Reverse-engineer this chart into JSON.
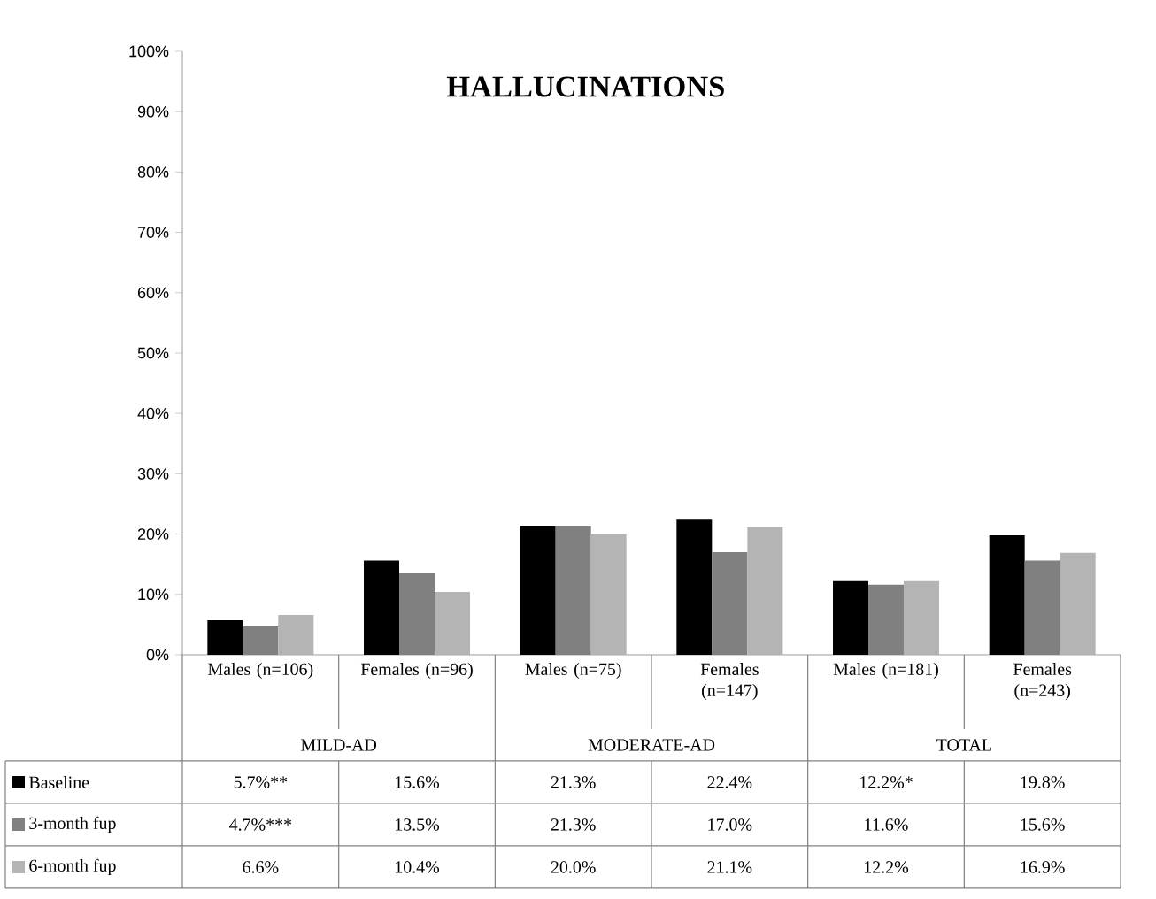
{
  "chart_data": {
    "type": "bar",
    "title": "HALLUCINATIONS",
    "categories": [
      "Males (n=106)",
      "Females (n=96)",
      "Males (n=75)",
      "Females (n=147)",
      "Males (n=181)",
      "Females (n=243)"
    ],
    "series": [
      {
        "name": "Baseline",
        "color": "#000000",
        "values": [
          5.7,
          15.6,
          21.3,
          22.4,
          12.2,
          19.8
        ],
        "value_labels": [
          "5.7%**",
          "15.6%",
          "21.3%",
          "22.4%",
          "12.2%*",
          "19.8%"
        ]
      },
      {
        "name": "3-month fup",
        "color": "#808080",
        "values": [
          4.7,
          13.5,
          21.3,
          17.0,
          11.6,
          15.6
        ],
        "value_labels": [
          "4.7%***",
          "13.5%",
          "21.3%",
          "17.0%",
          "11.6%",
          "15.6%"
        ]
      },
      {
        "name": "6-month fup",
        "color": "#b4b4b4",
        "values": [
          6.6,
          10.4,
          20.0,
          21.1,
          12.2,
          16.9
        ],
        "value_labels": [
          "6.6%",
          "10.4%",
          "20.0%",
          "21.1%",
          "12.2%",
          "16.9%"
        ]
      }
    ],
    "annotations": [
      "MILD-AD",
      "MODERATE-AD",
      "TOTAL"
    ],
    "ylim": [
      0,
      100
    ],
    "yticks": [
      {
        "value": 0,
        "label": "0%"
      },
      {
        "value": 10,
        "label": "10%"
      },
      {
        "value": 20,
        "label": "20%"
      },
      {
        "value": 30,
        "label": "30%"
      },
      {
        "value": 40,
        "label": "40%"
      },
      {
        "value": 50,
        "label": "50%"
      },
      {
        "value": 60,
        "label": "60%"
      },
      {
        "value": 70,
        "label": "70%"
      },
      {
        "value": 80,
        "label": "80%"
      },
      {
        "value": 90,
        "label": "90%"
      },
      {
        "value": 100,
        "label": "100%"
      }
    ],
    "legend": "bottom"
  }
}
